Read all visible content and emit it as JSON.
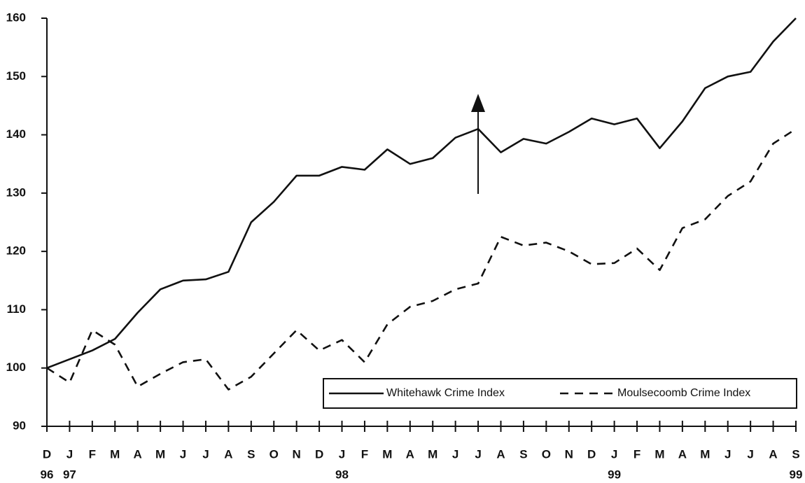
{
  "chart_data": {
    "type": "line",
    "categories": [
      "D",
      "J",
      "F",
      "M",
      "A",
      "M",
      "J",
      "J",
      "A",
      "S",
      "O",
      "N",
      "D",
      "J",
      "F",
      "M",
      "A",
      "M",
      "J",
      "J",
      "A",
      "S",
      "O",
      "N",
      "D",
      "J",
      "F",
      "M",
      "A",
      "M",
      "J",
      "J",
      "A",
      "S"
    ],
    "year_labels": [
      "96",
      "97",
      null,
      null,
      null,
      null,
      null,
      null,
      null,
      null,
      null,
      null,
      null,
      "98",
      null,
      null,
      null,
      null,
      null,
      null,
      null,
      null,
      null,
      null,
      null,
      "99",
      null,
      null,
      null,
      null,
      null,
      null,
      null,
      "99"
    ],
    "series": [
      {
        "name": "Whitehawk Crime Index",
        "color": "#111111",
        "dash": false,
        "values": [
          100,
          101.5,
          103,
          105,
          109.5,
          113.5,
          115,
          115.2,
          116.5,
          125,
          128.5,
          133,
          133,
          134.5,
          134,
          137.5,
          135,
          136,
          139.5,
          141,
          137,
          139.3,
          138.5,
          140.5,
          142.8,
          141.8,
          142.8,
          137.7,
          142.3,
          148,
          150,
          150.8,
          156,
          160
        ]
      },
      {
        "name": "Moulsecoomb Crime Index",
        "color": "#111111",
        "dash": true,
        "values": [
          100,
          97.5,
          106.5,
          104,
          96.8,
          99,
          101,
          101.5,
          96.3,
          98.5,
          102.5,
          106.5,
          103,
          104.8,
          101,
          107.5,
          110.5,
          111.5,
          113.5,
          114.5,
          122.5,
          121,
          121.5,
          120,
          117.8,
          118,
          120.5,
          116.8,
          124,
          125.5,
          129.5,
          132,
          138.5,
          141
        ]
      }
    ],
    "ylim": [
      90,
      160
    ],
    "yticks": [
      90,
      100,
      110,
      120,
      130,
      140,
      150,
      160
    ],
    "grid": false,
    "legend": "bottom-right"
  }
}
